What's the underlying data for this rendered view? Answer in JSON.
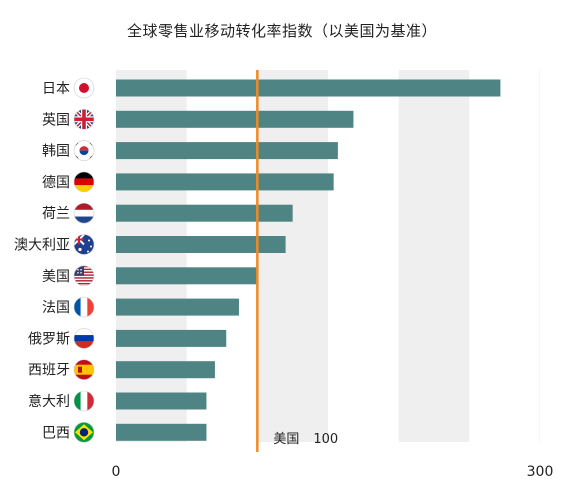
{
  "chart_data": {
    "type": "bar",
    "orientation": "horizontal",
    "title": "全球零售业移动转化率指数（以美国为基准）",
    "xlabel": "",
    "ylabel": "",
    "xlim": [
      0,
      300
    ],
    "x_ticks": [
      "0",
      "300"
    ],
    "grid": "alternating vertical bands",
    "categories": [
      "日本",
      "英国",
      "韩国",
      "德国",
      "荷兰",
      "澳大利亚",
      "美国",
      "法国",
      "俄罗斯",
      "西班牙",
      "意大利",
      "巴西"
    ],
    "flag_icons": [
      "japan-flag-icon",
      "uk-flag-icon",
      "korea-flag-icon",
      "germany-flag-icon",
      "netherlands-flag-icon",
      "australia-flag-icon",
      "usa-flag-icon",
      "france-flag-icon",
      "russia-flag-icon",
      "spain-flag-icon",
      "italy-flag-icon",
      "brazil-flag-icon"
    ],
    "values": [
      272,
      168,
      157,
      154,
      125,
      120,
      100,
      87,
      78,
      70,
      64,
      64
    ],
    "reference_line": {
      "value": 100,
      "label_name": "美国",
      "label_value": "100"
    },
    "colors": {
      "bar": "#4f8484",
      "reference": "#f08a24",
      "band": "#efefef"
    }
  }
}
